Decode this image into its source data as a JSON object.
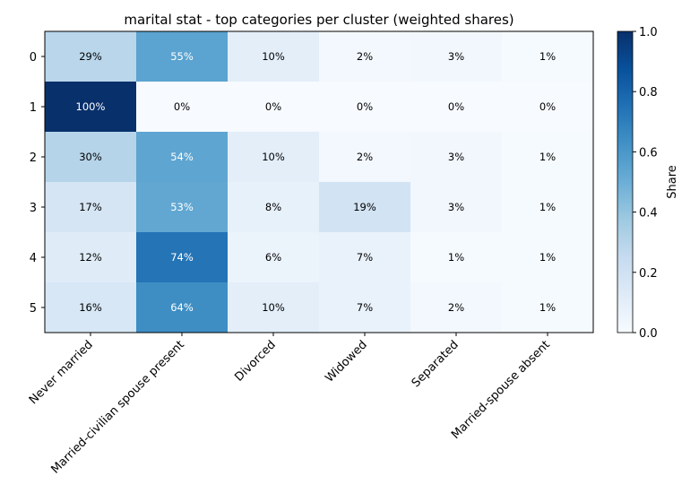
{
  "chart_data": {
    "type": "heatmap",
    "title": "marital stat - top categories per cluster (weighted shares)",
    "columns": [
      "Never married",
      "Married-civilian spouse present",
      "Divorced",
      "Widowed",
      "Separated",
      "Married-spouse absent"
    ],
    "rows": [
      "0",
      "1",
      "2",
      "3",
      "4",
      "5"
    ],
    "values": [
      [
        0.29,
        0.55,
        0.1,
        0.02,
        0.03,
        0.01
      ],
      [
        1.0,
        0.0,
        0.0,
        0.0,
        0.0,
        0.0
      ],
      [
        0.3,
        0.54,
        0.1,
        0.02,
        0.03,
        0.01
      ],
      [
        0.17,
        0.53,
        0.08,
        0.19,
        0.03,
        0.01
      ],
      [
        0.12,
        0.74,
        0.06,
        0.07,
        0.01,
        0.01
      ],
      [
        0.16,
        0.64,
        0.1,
        0.07,
        0.02,
        0.01
      ]
    ],
    "cell_labels": [
      [
        "29%",
        "55%",
        "10%",
        "2%",
        "3%",
        "1%"
      ],
      [
        "100%",
        "0%",
        "0%",
        "0%",
        "0%",
        "0%"
      ],
      [
        "30%",
        "54%",
        "10%",
        "2%",
        "3%",
        "1%"
      ],
      [
        "17%",
        "53%",
        "8%",
        "19%",
        "3%",
        "1%"
      ],
      [
        "12%",
        "74%",
        "6%",
        "7%",
        "1%",
        "1%"
      ],
      [
        "16%",
        "64%",
        "10%",
        "7%",
        "2%",
        "1%"
      ]
    ],
    "colormap": "Blues",
    "colorbar": {
      "label": "Share",
      "range": [
        0,
        1
      ],
      "ticks": [
        0.0,
        0.2,
        0.4,
        0.6,
        0.8,
        1.0
      ],
      "tick_labels": [
        "0.0",
        "0.2",
        "0.4",
        "0.6",
        "0.8",
        "1.0"
      ]
    }
  }
}
